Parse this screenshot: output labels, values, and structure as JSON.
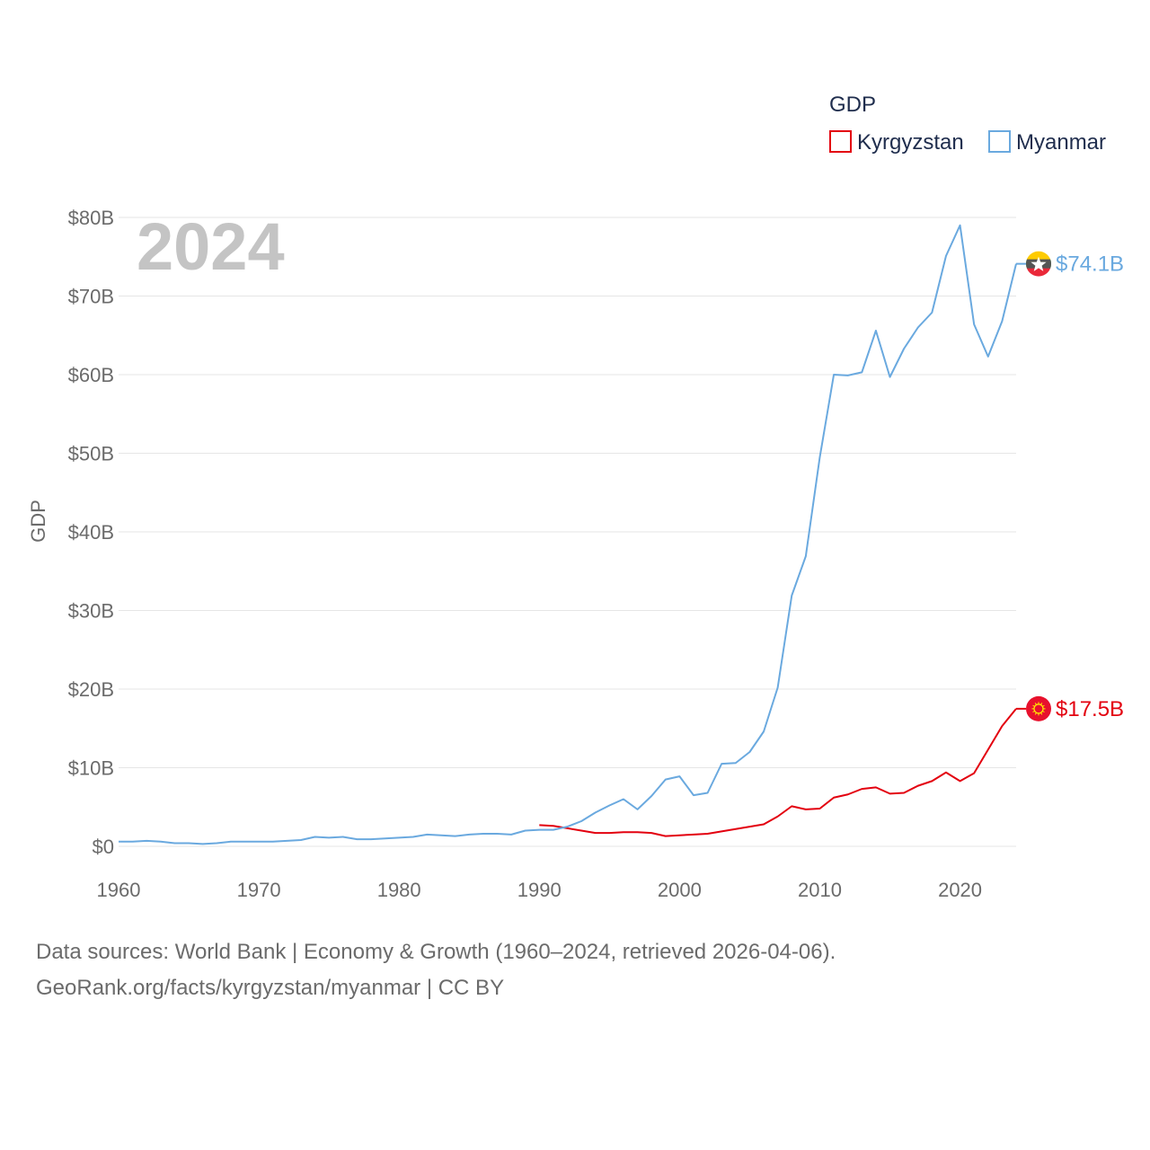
{
  "chart_data": {
    "type": "line",
    "ylabel": "GDP",
    "year_label": "2024",
    "legend_title": "GDP",
    "x_ticks": [
      1960,
      1970,
      1980,
      1990,
      2000,
      2010,
      2020
    ],
    "x_tick_labels": [
      "1960",
      "1970",
      "1980",
      "1990",
      "2000",
      "2010",
      "2020"
    ],
    "xlim": [
      1960,
      2024
    ],
    "ylim": [
      0,
      80
    ],
    "y_ticks": [
      0,
      10,
      20,
      30,
      40,
      50,
      60,
      70,
      80
    ],
    "y_tick_labels": [
      "$0",
      "$10B",
      "$20B",
      "$30B",
      "$40B",
      "$50B",
      "$60B",
      "$70B",
      "$80B"
    ],
    "series": [
      {
        "name": "Kyrgyzstan",
        "color": "#e3000f",
        "end_label": "$17.5B",
        "flag_icon": "kyrgyzstan-flag-icon",
        "x": [
          1990,
          1991,
          1992,
          1993,
          1994,
          1995,
          1996,
          1997,
          1998,
          1999,
          2000,
          2001,
          2002,
          2003,
          2004,
          2005,
          2006,
          2007,
          2008,
          2009,
          2010,
          2011,
          2012,
          2013,
          2014,
          2015,
          2016,
          2017,
          2018,
          2019,
          2020,
          2021,
          2022,
          2023,
          2024
        ],
        "values": [
          2.7,
          2.6,
          2.3,
          2.0,
          1.7,
          1.7,
          1.8,
          1.8,
          1.7,
          1.3,
          1.4,
          1.5,
          1.6,
          1.9,
          2.2,
          2.5,
          2.8,
          3.8,
          5.1,
          4.7,
          4.8,
          6.2,
          6.6,
          7.3,
          7.5,
          6.7,
          6.8,
          7.7,
          8.3,
          9.4,
          8.3,
          9.3,
          12.3,
          15.3,
          17.5
        ]
      },
      {
        "name": "Myanmar",
        "color": "#6aa9df",
        "end_label": "$74.1B",
        "flag_icon": "myanmar-flag-icon",
        "x": [
          1960,
          1961,
          1962,
          1963,
          1964,
          1965,
          1966,
          1967,
          1968,
          1969,
          1970,
          1971,
          1972,
          1973,
          1974,
          1975,
          1976,
          1977,
          1978,
          1979,
          1980,
          1981,
          1982,
          1983,
          1984,
          1985,
          1986,
          1987,
          1988,
          1989,
          1990,
          1991,
          1992,
          1993,
          1994,
          1995,
          1996,
          1997,
          1998,
          1999,
          2000,
          2001,
          2002,
          2003,
          2004,
          2005,
          2006,
          2007,
          2008,
          2009,
          2010,
          2011,
          2012,
          2013,
          2014,
          2015,
          2016,
          2017,
          2018,
          2019,
          2020,
          2021,
          2022,
          2023,
          2024
        ],
        "values": [
          0.6,
          0.6,
          0.7,
          0.6,
          0.4,
          0.4,
          0.3,
          0.4,
          0.6,
          0.6,
          0.6,
          0.6,
          0.7,
          0.8,
          1.2,
          1.1,
          1.2,
          0.9,
          0.9,
          1.0,
          1.1,
          1.2,
          1.5,
          1.4,
          1.3,
          1.5,
          1.6,
          1.6,
          1.5,
          2.0,
          2.1,
          2.1,
          2.5,
          3.2,
          4.3,
          5.2,
          6.0,
          4.7,
          6.4,
          8.5,
          8.9,
          6.5,
          6.8,
          10.5,
          10.6,
          12.0,
          14.6,
          20.2,
          31.9,
          36.9,
          49.5,
          60.0,
          59.9,
          60.3,
          65.6,
          59.7,
          63.3,
          66.0,
          67.9,
          75.1,
          79.0,
          66.4,
          62.3,
          66.8,
          74.1
        ]
      }
    ],
    "source_lines": [
      "Data sources: World Bank | Economy & Growth (1960–2024, retrieved 2026-04-06).",
      "GeoRank.org/facts/kyrgyzstan/myanmar | CC BY"
    ]
  }
}
